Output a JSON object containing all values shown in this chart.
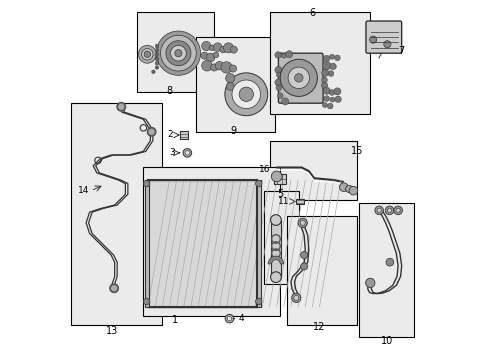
{
  "bg_color": "#ffffff",
  "border_color": "#000000",
  "line_color": "#333333",
  "label_color": "#000000",
  "box_bg": "#ebebeb",
  "fig_width": 4.89,
  "fig_height": 3.6,
  "dpi": 100
}
